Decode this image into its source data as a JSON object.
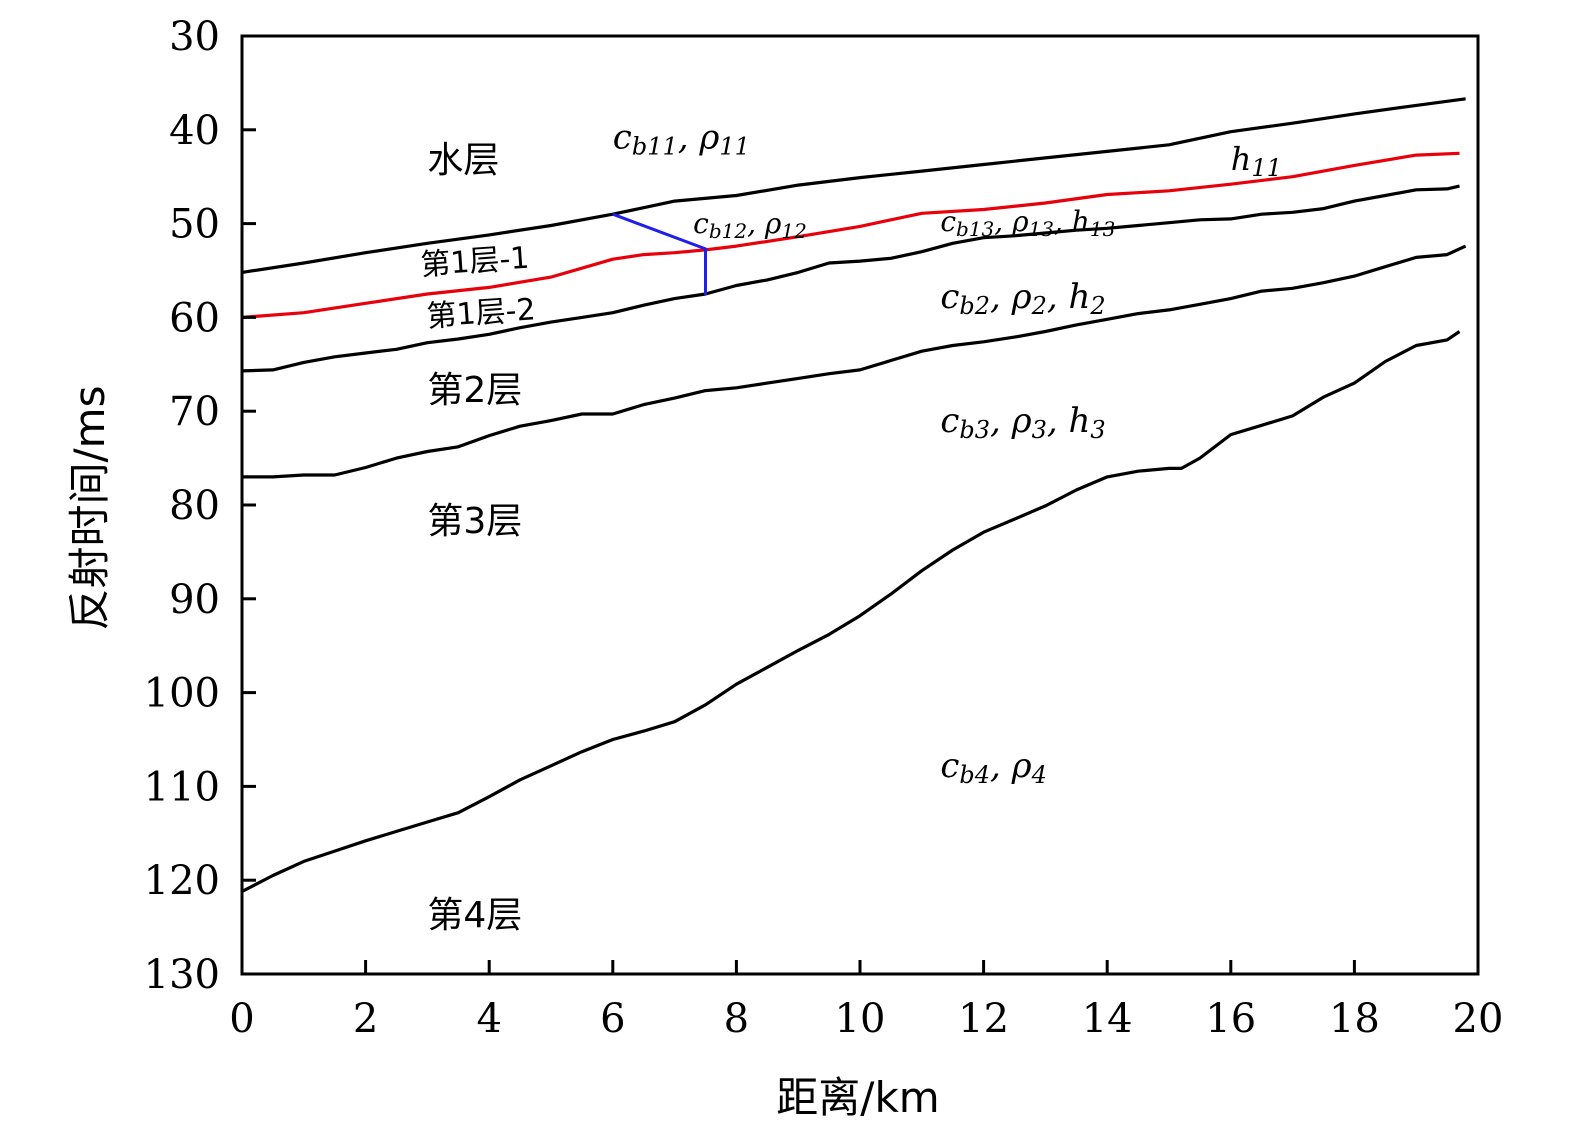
{
  "chart_data": {
    "type": "line",
    "xlabel": "距离/km",
    "ylabel": "反射时间/ms",
    "xlim": [
      0,
      20
    ],
    "ylim": [
      30,
      130
    ],
    "y_inverted": true,
    "grid": false,
    "x_ticks": [
      "0",
      "2",
      "4",
      "6",
      "8",
      "10",
      "12",
      "14",
      "16",
      "18",
      "20"
    ],
    "y_ticks": [
      "30",
      "40",
      "50",
      "60",
      "70",
      "80",
      "90",
      "100",
      "110",
      "120",
      "130"
    ],
    "series": [
      {
        "color": "#000000",
        "x": [
          0,
          1,
          2,
          3,
          4,
          5,
          6,
          6.5,
          7,
          8,
          9,
          10,
          11,
          12,
          13,
          14,
          15,
          16,
          17,
          18,
          19,
          19.8
        ],
        "y": [
          55.2,
          54.2,
          53.1,
          52.1,
          51.2,
          50.2,
          49.0,
          48.3,
          47.6,
          47.0,
          45.9,
          45.1,
          44.4,
          43.7,
          43.0,
          42.3,
          41.6,
          40.2,
          39.3,
          38.3,
          37.4,
          36.7
        ]
      },
      {
        "color": "#e8000b",
        "x": [
          0,
          1,
          2,
          3,
          4,
          5,
          6,
          6.5,
          7,
          7.5,
          8,
          9,
          10,
          11,
          12,
          13,
          14,
          15,
          16,
          17,
          18,
          19,
          19.7
        ],
        "y": [
          60.0,
          59.5,
          58.5,
          57.5,
          56.8,
          55.7,
          53.8,
          53.3,
          53.1,
          52.8,
          52.4,
          51.4,
          50.3,
          48.9,
          48.5,
          47.8,
          46.9,
          46.5,
          45.8,
          45.0,
          43.8,
          42.7,
          42.5
        ]
      },
      {
        "color": "#000000",
        "x": [
          0,
          0.5,
          1,
          1.5,
          2,
          2.5,
          3,
          3.5,
          4,
          4.5,
          5,
          5.5,
          6,
          6.5,
          7,
          7.5,
          8,
          8.5,
          9,
          9.5,
          10,
          10.5,
          11,
          11.5,
          12,
          12.5,
          13,
          13.5,
          14,
          14.5,
          15,
          15.5,
          16,
          16.5,
          17,
          17.5,
          18,
          18.5,
          19,
          19.5,
          19.7
        ],
        "y": [
          65.7,
          65.6,
          64.8,
          64.2,
          63.8,
          63.4,
          62.7,
          62.3,
          61.8,
          61.1,
          60.5,
          60.0,
          59.5,
          58.7,
          58.0,
          57.5,
          56.6,
          56.0,
          55.2,
          54.2,
          54.0,
          53.7,
          53.0,
          52.1,
          51.5,
          51.3,
          51.0,
          50.7,
          50.5,
          50.2,
          49.9,
          49.6,
          49.5,
          49.0,
          48.8,
          48.4,
          47.6,
          47.0,
          46.4,
          46.3,
          46.0
        ]
      },
      {
        "color": "#000000",
        "x": [
          0,
          0.5,
          1,
          1.5,
          2,
          2.5,
          3,
          3.5,
          4,
          4.5,
          5,
          5.5,
          6,
          6.5,
          7,
          7.5,
          8,
          8.5,
          9,
          9.5,
          10,
          10.5,
          11,
          11.5,
          12,
          12.5,
          13,
          13.5,
          14,
          14.5,
          15,
          15.5,
          16,
          16.5,
          17,
          17.5,
          18,
          18.5,
          19,
          19.5,
          19.8
        ],
        "y": [
          77.0,
          77.0,
          76.8,
          76.8,
          76.0,
          75.0,
          74.3,
          73.8,
          72.6,
          71.6,
          71.0,
          70.3,
          70.3,
          69.3,
          68.6,
          67.8,
          67.5,
          67.0,
          66.5,
          66.0,
          65.6,
          64.6,
          63.6,
          63.0,
          62.6,
          62.1,
          61.5,
          60.8,
          60.2,
          59.6,
          59.2,
          58.6,
          58.0,
          57.2,
          56.9,
          56.3,
          55.6,
          54.6,
          53.6,
          53.3,
          52.4
        ]
      },
      {
        "color": "#000000",
        "x": [
          0,
          0.5,
          1,
          1.5,
          2,
          2.5,
          3,
          3.5,
          4,
          4.5,
          5,
          5.5,
          6,
          6.5,
          7,
          7.5,
          8,
          8.5,
          9,
          9.5,
          10,
          10.5,
          11,
          11.5,
          12,
          12.5,
          13,
          13.5,
          14,
          14.5,
          15,
          15.2,
          15.5,
          16,
          16.5,
          17,
          17.5,
          18,
          18.5,
          19,
          19.5,
          19.7
        ],
        "y": [
          121.2,
          119.5,
          118.0,
          116.9,
          115.8,
          114.8,
          113.8,
          112.8,
          111.1,
          109.3,
          107.8,
          106.3,
          105.0,
          104.1,
          103.1,
          101.3,
          99.1,
          97.3,
          95.5,
          93.8,
          91.8,
          89.5,
          87.0,
          84.8,
          82.9,
          81.5,
          80.1,
          78.4,
          77.0,
          76.4,
          76.1,
          76.1,
          75.0,
          72.5,
          71.5,
          70.5,
          68.5,
          67.0,
          64.7,
          63.0,
          62.4,
          61.5
        ]
      },
      {
        "color": "#1f1fe8",
        "x": [
          6.0,
          7.5,
          7.5
        ],
        "y": [
          49.0,
          52.7,
          57.6
        ]
      }
    ],
    "annotations": [
      {
        "text": "水层",
        "x": 3.0,
        "y": 44.5,
        "kind": "cn"
      },
      {
        "text": "第1层-1",
        "x": 2.9,
        "y": 55.5,
        "kind": "cn-small"
      },
      {
        "text": "第1层-2",
        "x": 3.0,
        "y": 61.0,
        "kind": "cn-small"
      },
      {
        "text": "第2层",
        "x": 3.0,
        "y": 69.0,
        "kind": "cn"
      },
      {
        "text": "第3层",
        "x": 3.0,
        "y": 83.0,
        "kind": "cn"
      },
      {
        "text": "第4层",
        "x": 3.0,
        "y": 125.0,
        "kind": "cn"
      },
      {
        "text": "c<tspan font-size='24' dy='6'>b11</tspan><tspan dy='-6'>, ρ</tspan><tspan font-size='24' dy='6'>11</tspan>",
        "x": 6.0,
        "y": 42.0,
        "kind": "math",
        "size": 34
      },
      {
        "text": "c<tspan font-size='20' dy='5'>b12</tspan><tspan dy='-5'>, ρ</tspan><tspan font-size='20' dy='5'>12</tspan>",
        "x": 7.3,
        "y": 51.0,
        "kind": "math",
        "size": 28
      },
      {
        "text": "c<tspan font-size='20' dy='5'>b13</tspan><tspan dy='-5'>, ρ</tspan><tspan font-size='20' dy='5'>13</tspan><tspan dy='-5'>, h</tspan><tspan font-size='20' dy='5'>13</tspan>",
        "x": 11.3,
        "y": 50.8,
        "kind": "math",
        "size": 28
      },
      {
        "text": "h<tspan font-size='24' dy='6'>11</tspan>",
        "x": 16.0,
        "y": 44.3,
        "kind": "math",
        "size": 32
      },
      {
        "text": "c<tspan font-size='24' dy='6'>b2</tspan><tspan dy='-6'>, ρ</tspan><tspan font-size='24' dy='6'>2</tspan><tspan dy='-6'>, h</tspan><tspan font-size='24' dy='6'>2</tspan>",
        "x": 11.3,
        "y": 59.0,
        "kind": "math",
        "size": 34
      },
      {
        "text": "c<tspan font-size='24' dy='6'>b3</tspan><tspan dy='-6'>, ρ</tspan><tspan font-size='24' dy='6'>3</tspan><tspan dy='-6'>, h</tspan><tspan font-size='24' dy='6'>3</tspan>",
        "x": 11.3,
        "y": 72.2,
        "kind": "math",
        "size": 34
      },
      {
        "text": "c<tspan font-size='24' dy='6'>b4</tspan><tspan dy='-6'>, ρ</tspan><tspan font-size='24' dy='6'>4</tspan>",
        "x": 11.3,
        "y": 109.0,
        "kind": "math",
        "size": 34
      }
    ]
  }
}
